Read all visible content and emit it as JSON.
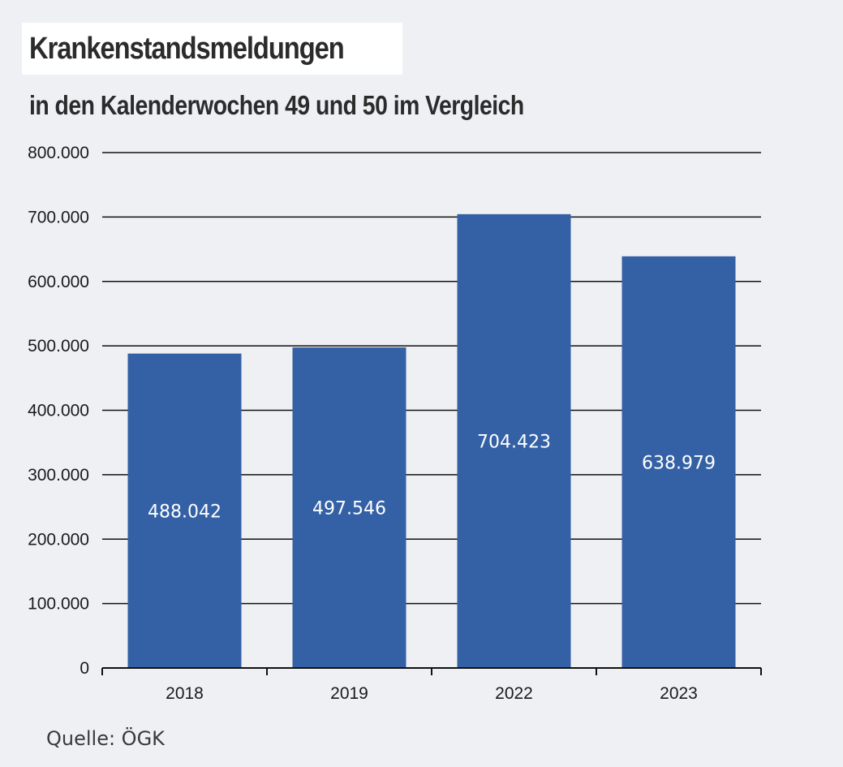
{
  "title": "Krankenstandsmeldungen",
  "subtitle": "in den Kalenderwochen 49 und 50 im Vergleich",
  "source": "Quelle: ÖGK",
  "colors": {
    "background": "#eff0f4",
    "bar": "#3461a5",
    "gridline": "#111111",
    "bar_label": "#ffffff"
  },
  "chart_data": {
    "type": "bar",
    "categories": [
      "2018",
      "2019",
      "2022",
      "2023"
    ],
    "values": [
      488042,
      497546,
      704423,
      638979
    ],
    "value_labels": [
      "488.042",
      "497.546",
      "704.423",
      "638.979"
    ],
    "ylim": [
      0,
      800000
    ],
    "yticks": [
      0,
      100000,
      200000,
      300000,
      400000,
      500000,
      600000,
      700000,
      800000
    ],
    "ytick_labels": [
      "0",
      "100.000",
      "200.000",
      "300.000",
      "400.000",
      "500.000",
      "600.000",
      "700.000",
      "800.000"
    ],
    "grid": true,
    "xlabel": "",
    "ylabel": ""
  }
}
